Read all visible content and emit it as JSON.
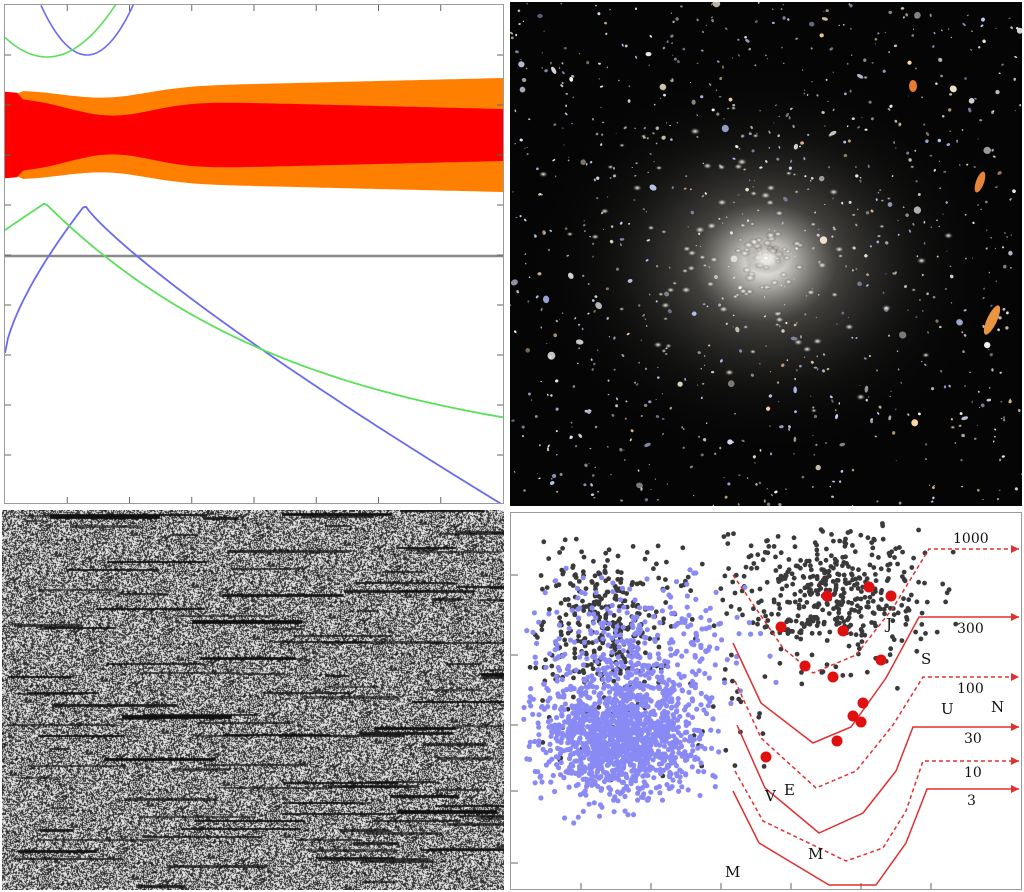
{
  "colors": {
    "band_inner": "#ff0000",
    "band_outer": "#ff8000",
    "curve_blue": "#6a6af0",
    "curve_green": "#5ae05a",
    "dots_gray": "#3a3a3a",
    "dots_blue": "#8a8af5",
    "dots_red": "#e01010",
    "track_red": "#e03030"
  },
  "scatter_panel": {
    "track_labels": [
      "1000",
      "300",
      "100",
      "30",
      "10",
      "3"
    ],
    "planet_letters": [
      "M",
      "V",
      "E",
      "M",
      "U",
      "N",
      "S",
      "J"
    ]
  }
}
